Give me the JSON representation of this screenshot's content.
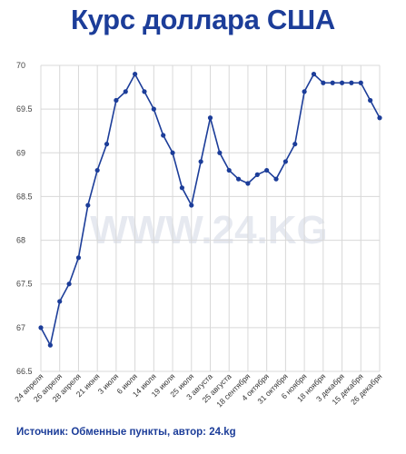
{
  "title": "Курс доллара США",
  "source": "Источник: Обменные пункты, автор: 24.kg",
  "watermark": "WWW.24.KG",
  "colors": {
    "line": "#1c3d99",
    "title": "#1c3d99",
    "grid": "#d8d8d8"
  },
  "chart_data": {
    "type": "line",
    "title": "Курс доллара США",
    "xlabel": "",
    "ylabel": "",
    "ylim": [
      66.5,
      70
    ],
    "yticks": [
      66.5,
      67,
      67.5,
      68,
      68.5,
      69,
      69.5,
      70
    ],
    "grid": true,
    "x_tick_labels": [
      "24 апреля",
      "26 апреля",
      "28 апреля",
      "21 июня",
      "3 июля",
      "6 июля",
      "14 июля",
      "19 июля",
      "25 июля",
      "3 августа",
      "25 августа",
      "18 сентября",
      "4 октября",
      "31 октября",
      "6 ноября",
      "18 ноября",
      "3 декабря",
      "15 декабря",
      "26 декабря"
    ],
    "series": [
      {
        "values": [
          67.0,
          66.8,
          67.3,
          67.5,
          67.8,
          68.4,
          68.8,
          69.1,
          69.6,
          69.7,
          69.9,
          69.7,
          69.5,
          69.2,
          69.0,
          68.6,
          68.4,
          68.9,
          69.4,
          69.0,
          68.8,
          68.7,
          68.65,
          68.75,
          68.8,
          68.7,
          68.9,
          69.1,
          69.7,
          69.9,
          69.8,
          69.8,
          69.8,
          69.8,
          69.8,
          69.6,
          69.4
        ]
      }
    ]
  }
}
